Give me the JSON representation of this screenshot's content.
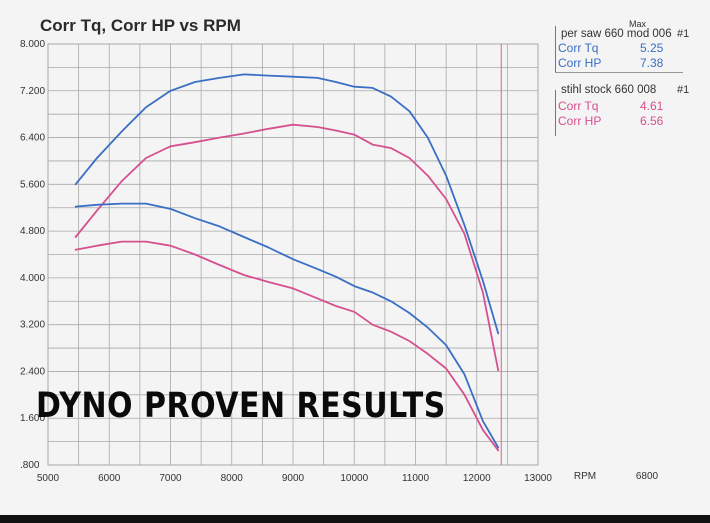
{
  "title": "Corr Tq, Corr HP vs RPM",
  "overlay_text": "DYNO PROVEN RESULTS",
  "legend": [
    {
      "header": "per saw 660 mod 006",
      "header_max": "Max",
      "run_number": "#1",
      "rows": [
        {
          "name": "Corr Tq",
          "value": "5.25"
        },
        {
          "name": "Corr HP",
          "value": "7.38"
        }
      ],
      "color": "#3a6fc4"
    },
    {
      "header": "stihl stock 660 008",
      "run_number": "#1",
      "rows": [
        {
          "name": "Corr Tq",
          "value": "4.61"
        },
        {
          "name": "Corr HP",
          "value": "6.56"
        }
      ],
      "color": "#d6508f"
    }
  ],
  "colors": {
    "blue_series": "#3a6fc4",
    "pink_series": "#d6508f",
    "grid": "#a9a9a9",
    "redline": "#d66"
  },
  "chart_data": {
    "type": "line",
    "title": "Corr Tq, Corr HP vs RPM",
    "xlabel": "RPM",
    "ylabel": "",
    "xlim": [
      5000,
      13000
    ],
    "ylim": [
      0.8,
      8.0
    ],
    "x_ticks": [
      "5000",
      "6000",
      "7000",
      "8000",
      "9000",
      "10000",
      "11000",
      "12000",
      "13000"
    ],
    "y_ticks": [
      ".800",
      "1.600",
      "2.400",
      "3.200",
      "4.000",
      "4.800",
      "5.600",
      "6.400",
      "7.200",
      "8.000"
    ],
    "extra_axis_labels": [
      "RPM",
      "6800"
    ],
    "grid": true,
    "legend_position": "top-right",
    "series": [
      {
        "name": "Corr HP",
        "group": "per saw 660 mod 006",
        "color": "#3a6fc4",
        "x": [
          5450,
          5800,
          6200,
          6600,
          7000,
          7400,
          7800,
          8200,
          8600,
          9000,
          9400,
          9700,
          10000,
          10300,
          10600,
          10900,
          11200,
          11500,
          11800,
          12100,
          12350
        ],
        "y": [
          5.6,
          6.05,
          6.5,
          6.92,
          7.2,
          7.35,
          7.42,
          7.48,
          7.46,
          7.44,
          7.42,
          7.35,
          7.27,
          7.25,
          7.1,
          6.85,
          6.4,
          5.75,
          4.9,
          3.95,
          3.05
        ]
      },
      {
        "name": "Corr HP",
        "group": "stihl stock 660 008",
        "color": "#d6508f",
        "x": [
          5450,
          5800,
          6200,
          6600,
          7000,
          7400,
          7800,
          8200,
          8600,
          9000,
          9400,
          9700,
          10000,
          10300,
          10600,
          10900,
          11200,
          11500,
          11800,
          12100,
          12350
        ],
        "y": [
          4.7,
          5.15,
          5.65,
          6.05,
          6.25,
          6.32,
          6.4,
          6.47,
          6.55,
          6.62,
          6.58,
          6.52,
          6.45,
          6.28,
          6.22,
          6.05,
          5.75,
          5.35,
          4.75,
          3.75,
          2.42
        ]
      },
      {
        "name": "Corr Tq",
        "group": "per saw 660 mod 006",
        "color": "#3a6fc4",
        "x": [
          5450,
          5800,
          6200,
          6600,
          7000,
          7400,
          7800,
          8200,
          8600,
          9000,
          9400,
          9700,
          10000,
          10300,
          10600,
          10900,
          11200,
          11500,
          11800,
          12100,
          12350
        ],
        "y": [
          5.22,
          5.25,
          5.27,
          5.27,
          5.18,
          5.02,
          4.88,
          4.7,
          4.52,
          4.32,
          4.15,
          4.02,
          3.86,
          3.75,
          3.6,
          3.4,
          3.15,
          2.85,
          2.35,
          1.55,
          1.1
        ]
      },
      {
        "name": "Corr Tq",
        "group": "stihl stock 660 008",
        "color": "#d6508f",
        "x": [
          5450,
          5800,
          6200,
          6600,
          7000,
          7400,
          7800,
          8200,
          8600,
          9000,
          9400,
          9700,
          10000,
          10300,
          10600,
          10900,
          11200,
          11500,
          11800,
          12100,
          12350
        ],
        "y": [
          4.48,
          4.55,
          4.62,
          4.62,
          4.55,
          4.4,
          4.22,
          4.05,
          3.93,
          3.82,
          3.65,
          3.52,
          3.42,
          3.2,
          3.08,
          2.92,
          2.7,
          2.45,
          2.0,
          1.4,
          1.05
        ]
      }
    ]
  }
}
